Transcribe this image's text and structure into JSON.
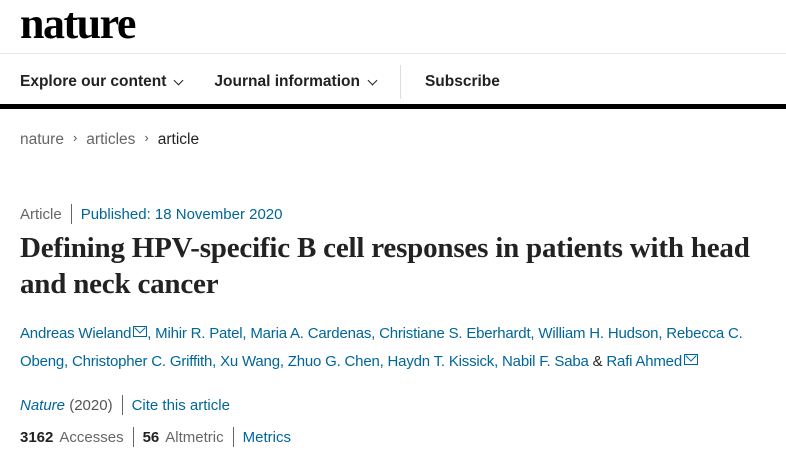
{
  "header": {
    "logo": "nature"
  },
  "nav": {
    "items": [
      {
        "label": "Explore our content"
      },
      {
        "label": "Journal information"
      },
      {
        "label": "Subscribe"
      }
    ]
  },
  "breadcrumb": [
    "nature",
    "articles",
    "article"
  ],
  "article": {
    "type": "Article",
    "published": "Published: 18 November 2020",
    "title": "Defining HPV-specific B cell responses in patients with head and neck cancer",
    "authors": [
      "Andreas Wieland",
      "Mihir R. Patel",
      "Maria A. Cardenas",
      "Christiane S. Eberhardt",
      "William H. Hudson",
      "Rebecca C. Obeng",
      "Christopher C. Griffith",
      "Xu Wang",
      "Zhuo G. Chen",
      "Haydn T. Kissick",
      "Nabil F. Saba",
      "Rafi Ahmed"
    ],
    "journal": "Nature",
    "year": "(2020)",
    "cite_label": "Cite this article",
    "accesses_count": "3162",
    "accesses_label": "Accesses",
    "altmetric_count": "56",
    "altmetric_label": "Altmetric",
    "metrics_label": "Metrics"
  },
  "colors": {
    "link": "#006699",
    "text": "#222222"
  }
}
